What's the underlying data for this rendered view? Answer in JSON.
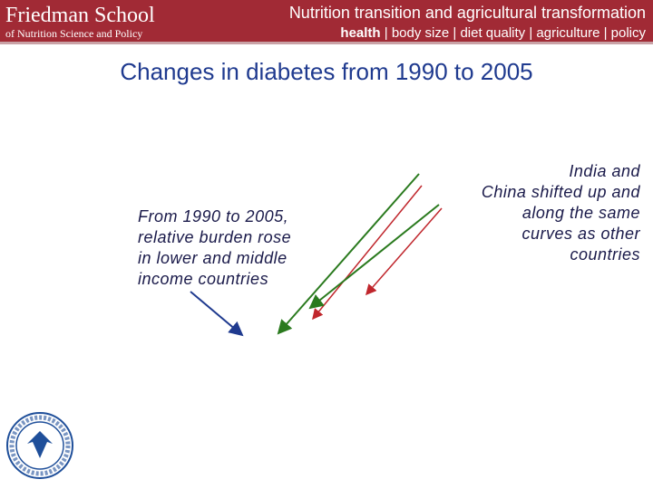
{
  "header": {
    "logo_name": "Friedman School",
    "logo_sub": "of Nutrition Science and Policy",
    "title": "Nutrition transition and agricultural transformation",
    "tagline_bold": "health",
    "tagline_rest": " | body size | diet quality | agriculture | policy"
  },
  "slide_title": "Changes in diabetes from 1990 to 2005",
  "left_note": [
    "From 1990 to 2005,",
    "relative burden rose",
    "in lower and middle",
    "income countries"
  ],
  "right_note": [
    "India and",
    "China shifted up and",
    "along the same",
    "curves as other",
    "countries"
  ]
}
